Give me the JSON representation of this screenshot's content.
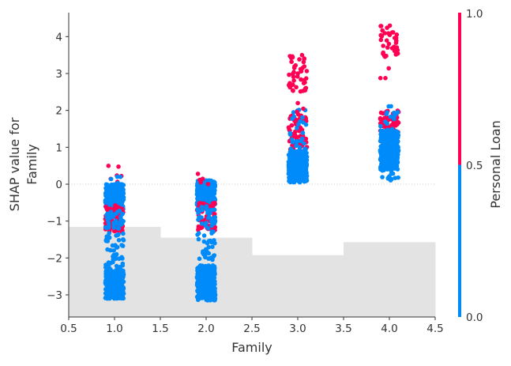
{
  "chart_data": {
    "type": "scatter",
    "subtype": "shap-dependence",
    "xlabel": "Family",
    "ylabel_lines": [
      "SHAP value for",
      "Family"
    ],
    "xlim": [
      0.5,
      4.5
    ],
    "ylim": [
      -3.6,
      4.65
    ],
    "xticks": [
      "0.5",
      "1.0",
      "1.5",
      "2.0",
      "2.5",
      "3.0",
      "3.5",
      "4.0",
      "4.5"
    ],
    "yticks": [
      "−3",
      "−2",
      "−1",
      "0",
      "1",
      "2",
      "3",
      "4"
    ],
    "ytick_values": [
      -3,
      -2,
      -1,
      0,
      1,
      2,
      3,
      4
    ],
    "zero_line": true,
    "colorbar": {
      "label": "Personal Loan",
      "ticks": [
        "0.0",
        "0.5",
        "1.0"
      ],
      "low_color": "#008bfb",
      "high_color": "#ff0052"
    },
    "histogram": {
      "categories": [
        1,
        2,
        3,
        4
      ],
      "counts": [
        1472,
        1296,
        1010,
        1222
      ],
      "color": "#e3e3e3"
    },
    "jitter": 0.1,
    "clusters": [
      {
        "x": 1,
        "y": [
          -0.7,
          0.0
        ],
        "n": 320,
        "value": 0
      },
      {
        "x": 1,
        "y": [
          -1.3,
          -0.55
        ],
        "n": 70,
        "value": 1
      },
      {
        "x": 1,
        "y": [
          -1.2,
          -0.7
        ],
        "n": 40,
        "value": 0
      },
      {
        "x": 1,
        "y": [
          -2.3,
          -1.3
        ],
        "n": 45,
        "value": 0
      },
      {
        "x": 1,
        "y": [
          -3.1,
          -2.3
        ],
        "n": 320,
        "value": 0
      },
      {
        "x": 1,
        "y": [
          0.0,
          0.5
        ],
        "n": 6,
        "value": 1
      },
      {
        "x": 1,
        "y": [
          0.0,
          0.3
        ],
        "n": 4,
        "value": 0
      },
      {
        "x": 2,
        "y": [
          -0.6,
          0.1
        ],
        "n": 320,
        "value": 0
      },
      {
        "x": 2,
        "y": [
          -1.25,
          -0.5
        ],
        "n": 70,
        "value": 1
      },
      {
        "x": 2,
        "y": [
          -1.2,
          -0.6
        ],
        "n": 40,
        "value": 0
      },
      {
        "x": 2,
        "y": [
          -2.1,
          -1.2
        ],
        "n": 35,
        "value": 0
      },
      {
        "x": 2,
        "y": [
          -3.15,
          -2.2
        ],
        "n": 320,
        "value": 0
      },
      {
        "x": 2,
        "y": [
          0.0,
          0.3
        ],
        "n": 6,
        "value": 1
      },
      {
        "x": 3,
        "y": [
          0.8,
          1.9
        ],
        "n": 75,
        "value": 1
      },
      {
        "x": 3,
        "y": [
          0.8,
          2.05
        ],
        "n": 30,
        "value": 0
      },
      {
        "x": 3,
        "y": [
          0.05,
          0.9
        ],
        "n": 320,
        "value": 0
      },
      {
        "x": 3,
        "y": [
          2.5,
          3.5
        ],
        "n": 45,
        "value": 1
      },
      {
        "x": 3,
        "y": [
          1.9,
          2.2
        ],
        "n": 3,
        "value": 1
      },
      {
        "x": 4,
        "y": [
          1.3,
          2.0
        ],
        "n": 75,
        "value": 1
      },
      {
        "x": 4,
        "y": [
          0.4,
          1.45
        ],
        "n": 320,
        "value": 0
      },
      {
        "x": 4,
        "y": [
          1.4,
          2.15
        ],
        "n": 20,
        "value": 0
      },
      {
        "x": 4,
        "y": [
          0.05,
          0.5
        ],
        "n": 15,
        "value": 0
      },
      {
        "x": 4,
        "y": [
          3.45,
          4.3
        ],
        "n": 35,
        "value": 1
      },
      {
        "x": 4,
        "y": [
          2.4,
          3.2
        ],
        "n": 3,
        "value": 1
      }
    ]
  }
}
